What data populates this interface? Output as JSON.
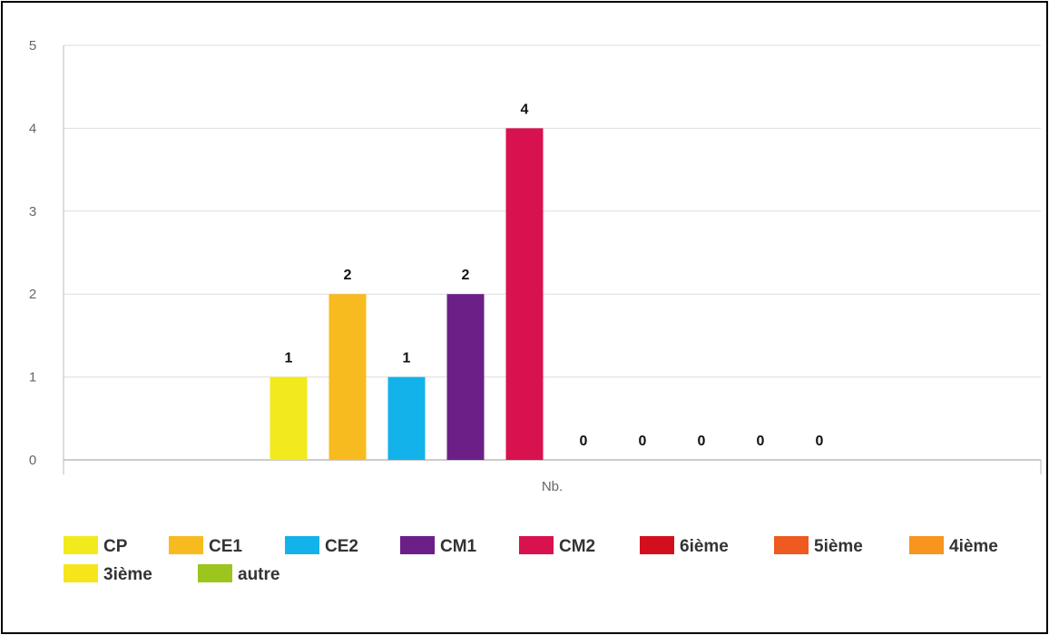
{
  "chart_data": {
    "type": "bar",
    "categories": [
      "Nb."
    ],
    "ylim": [
      0,
      5
    ],
    "yticks": [
      0,
      1,
      2,
      3,
      4,
      5
    ],
    "grid": true,
    "legend_position": "bottom",
    "series": [
      {
        "name": "CP",
        "values": [
          1
        ],
        "color": "#f2ea1c"
      },
      {
        "name": "CE1",
        "values": [
          2
        ],
        "color": "#f8bb1f"
      },
      {
        "name": "CE2",
        "values": [
          1
        ],
        "color": "#13b2ea"
      },
      {
        "name": "CM1",
        "values": [
          2
        ],
        "color": "#6b1f87"
      },
      {
        "name": "CM2",
        "values": [
          4
        ],
        "color": "#d8114f"
      },
      {
        "name": "6ième",
        "values": [
          0
        ],
        "color": "#d40f1d"
      },
      {
        "name": "5ième",
        "values": [
          0
        ],
        "color": "#ee5a20"
      },
      {
        "name": "4ième",
        "values": [
          0
        ],
        "color": "#f7951e"
      },
      {
        "name": "3ième",
        "values": [
          0
        ],
        "color": "#f6e51b"
      },
      {
        "name": "autre",
        "values": [
          0
        ],
        "color": "#9cc51d"
      }
    ]
  }
}
